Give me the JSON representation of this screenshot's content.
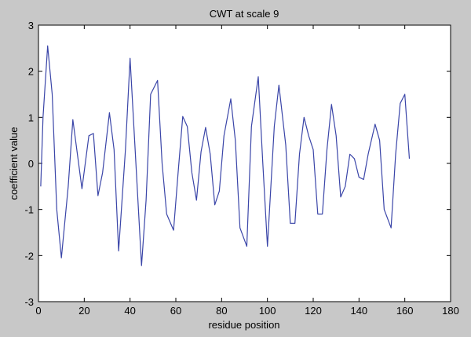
{
  "chart_data": {
    "type": "line",
    "title": "CWT at scale 9",
    "xlabel": "residue position",
    "ylabel": "coefficient value",
    "xlim": [
      0,
      180
    ],
    "ylim": [
      -3,
      3
    ],
    "xticks": [
      0,
      20,
      40,
      60,
      80,
      100,
      120,
      140,
      160,
      180
    ],
    "yticks": [
      -3,
      -2,
      -1,
      0,
      1,
      2,
      3
    ],
    "grid": false,
    "line_color": "#3a45a8",
    "series": [
      {
        "x": [
          1,
          2,
          4,
          6,
          8,
          10,
          13,
          15,
          17,
          19,
          22,
          24,
          26,
          28,
          31,
          33,
          35,
          38,
          40,
          42,
          45,
          47,
          49,
          52,
          54,
          56,
          59,
          61,
          63,
          65,
          67,
          69,
          71,
          73,
          75,
          77,
          79,
          81,
          84,
          86,
          88,
          91,
          93,
          96,
          98,
          100,
          103,
          105,
          108,
          110,
          112,
          114,
          116,
          118,
          120,
          122,
          124,
          126,
          128,
          130,
          132,
          134,
          136,
          138,
          140,
          142,
          144,
          147,
          149,
          151,
          154,
          156,
          158,
          160,
          162
        ],
        "y": [
          -0.5,
          1.0,
          2.55,
          1.5,
          -1.0,
          -2.05,
          -0.5,
          0.95,
          0.2,
          -0.55,
          0.6,
          0.65,
          -0.7,
          -0.2,
          1.1,
          0.3,
          -1.9,
          0.3,
          2.28,
          0.5,
          -2.22,
          -0.8,
          1.5,
          1.8,
          0.0,
          -1.1,
          -1.45,
          -0.2,
          1.02,
          0.8,
          -0.2,
          -0.8,
          0.25,
          0.78,
          0.2,
          -0.9,
          -0.6,
          0.6,
          1.4,
          0.5,
          -1.4,
          -1.8,
          0.8,
          1.88,
          0.0,
          -1.8,
          0.8,
          1.7,
          0.4,
          -1.3,
          -1.3,
          0.2,
          1.0,
          0.6,
          0.3,
          -1.1,
          -1.1,
          0.3,
          1.28,
          0.6,
          -0.73,
          -0.5,
          0.2,
          0.1,
          -0.3,
          -0.35,
          0.2,
          0.85,
          0.5,
          -1.0,
          -1.4,
          0.2,
          1.3,
          1.5,
          0.1
        ]
      }
    ]
  }
}
